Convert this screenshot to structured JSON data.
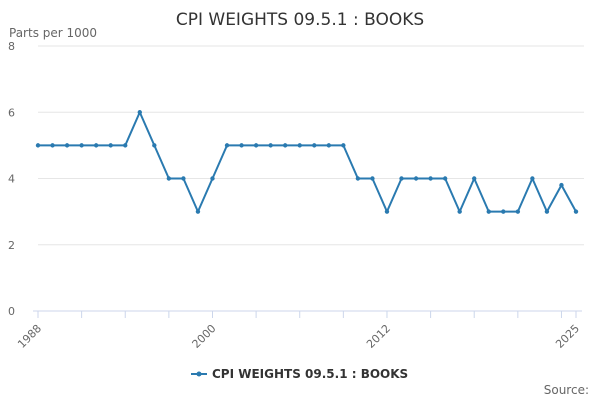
{
  "chart_data": {
    "type": "line",
    "title": "CPI WEIGHTS 09.5.1 : BOOKS",
    "ylabel": "Parts per 1000",
    "xlabel": "",
    "ylim": [
      0,
      8
    ],
    "yticks": [
      0,
      2,
      4,
      6,
      8
    ],
    "xlim": [
      1988,
      2025
    ],
    "xtick_labels": [
      "1988",
      "2000",
      "2012",
      "2025"
    ],
    "grid": "horizontal",
    "legend_position": "bottom",
    "source_label": "Source:",
    "colors": {
      "line": "#2a7ab0",
      "grid": "#e6e6e6",
      "axis": "#ccd6eb"
    },
    "series": [
      {
        "name": "CPI WEIGHTS 09.5.1 : BOOKS",
        "x": [
          1988,
          1989,
          1990,
          1991,
          1992,
          1993,
          1994,
          1995,
          1996,
          1997,
          1998,
          1999,
          2000,
          2001,
          2002,
          2003,
          2004,
          2005,
          2006,
          2007,
          2008,
          2009,
          2010,
          2011,
          2012,
          2013,
          2014,
          2015,
          2016,
          2017,
          2018,
          2019,
          2020,
          2021,
          2022,
          2023,
          2024,
          2025
        ],
        "values": [
          5,
          5,
          5,
          5,
          5,
          5,
          5,
          6,
          5,
          4,
          4,
          3,
          4,
          5,
          5,
          5,
          5,
          5,
          5,
          5,
          5,
          5,
          4,
          4,
          3,
          4,
          4,
          4,
          4,
          3,
          4,
          3,
          3,
          3,
          4,
          3,
          3.8,
          3
        ]
      }
    ]
  }
}
